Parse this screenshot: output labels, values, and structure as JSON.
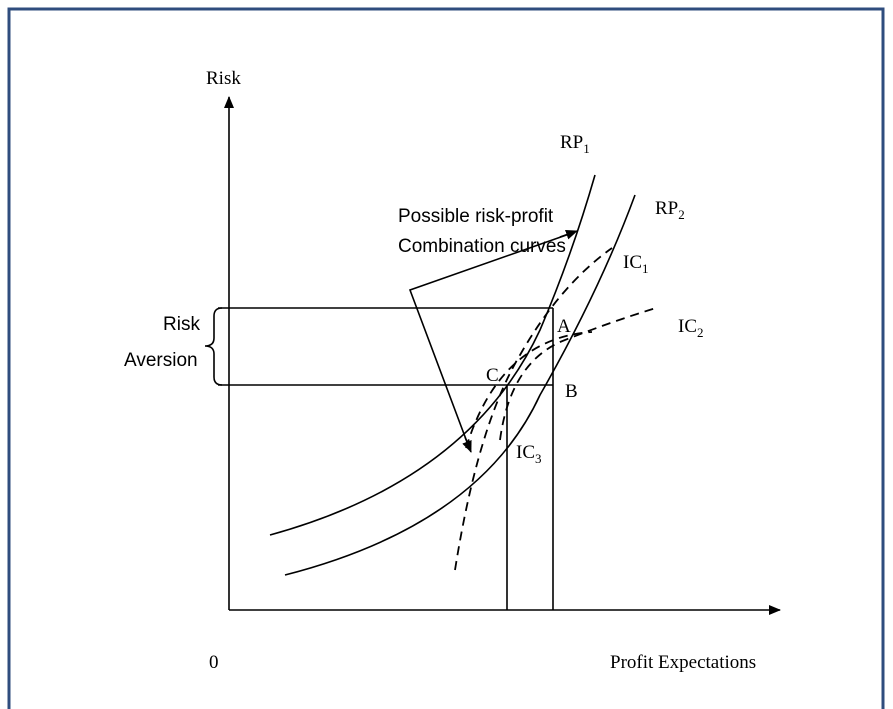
{
  "axes": {
    "y_label": "Risk",
    "x_label": "Profit Expectations",
    "origin": "0"
  },
  "curves": [
    {
      "name": "RP",
      "sub": "1"
    },
    {
      "name": "RP",
      "sub": "2"
    },
    {
      "name": "IC",
      "sub": "1"
    },
    {
      "name": "IC",
      "sub": "2"
    },
    {
      "name": "IC",
      "sub": "3"
    }
  ],
  "points": [
    "A",
    "B",
    "C"
  ],
  "annotations": {
    "combination": [
      "Possible risk-profit",
      "Combination curves"
    ],
    "risk_aversion": [
      "Risk",
      "Aversion"
    ]
  }
}
